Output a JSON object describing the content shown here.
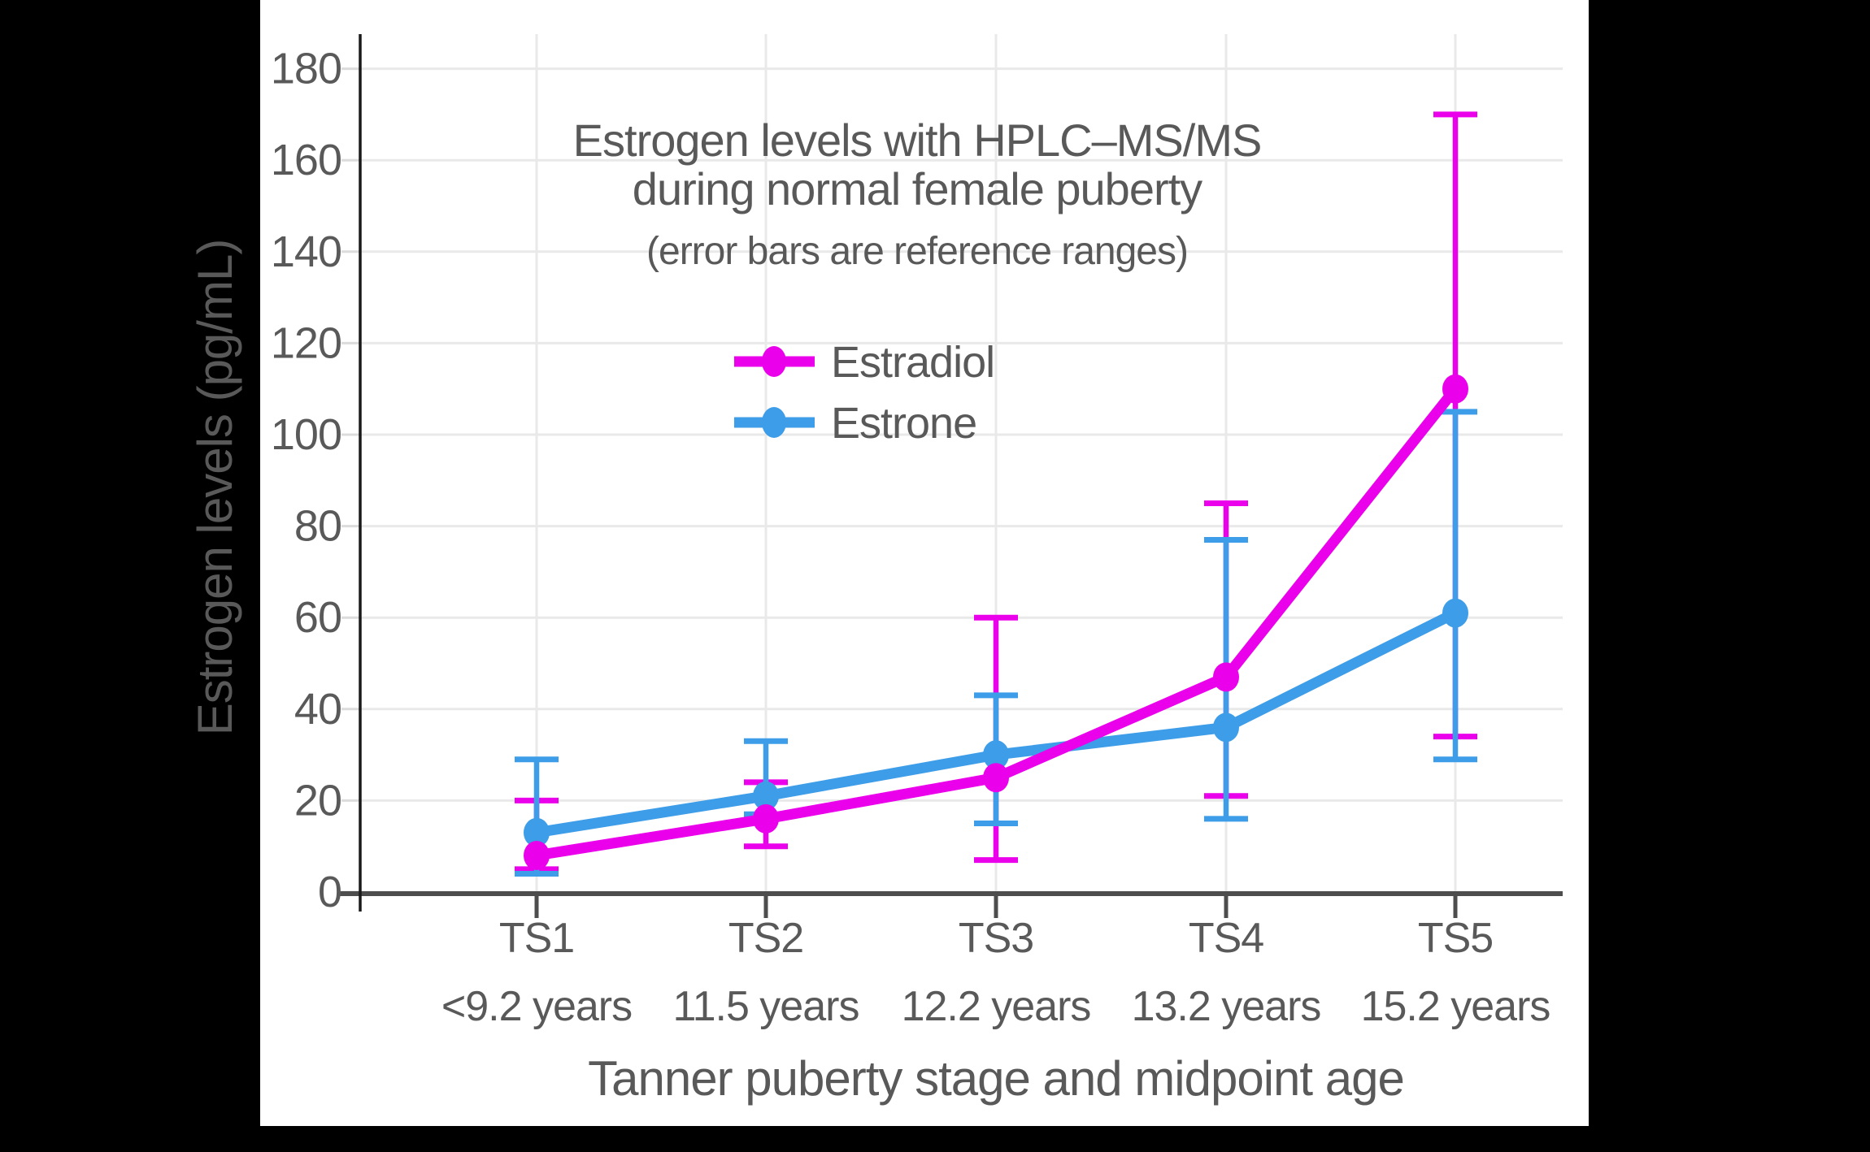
{
  "frame": {
    "background": "#000000",
    "panel_background": "#ffffff"
  },
  "palette": {
    "text": "#595959",
    "grid": "#e9e9e9",
    "x_axis": "#4d4d4d",
    "y_axis": "#1a1a1a",
    "tick_stub": "#dcdcdc"
  },
  "chart_data": {
    "type": "line",
    "title_line1": "Estrogen levels with HPLC–MS/MS",
    "title_line2": "during normal female puberty",
    "subtitle": "(error bars are reference ranges)",
    "ylabel": "Estrogen levels (pg/mL)",
    "xlabel": "Tanner puberty stage and midpoint age",
    "categories": [
      "TS1",
      "TS2",
      "TS3",
      "TS4",
      "TS5"
    ],
    "category_ages": [
      "<9.2 years",
      "11.5 years",
      "12.2 years",
      "13.2 years",
      "15.2 years"
    ],
    "yticks": [
      0,
      20,
      40,
      60,
      80,
      100,
      120,
      140,
      160,
      180
    ],
    "ylim": [
      0,
      187
    ],
    "grid": true,
    "legend_position": "inside-upper-center",
    "error_bar_meaning": "reference ranges",
    "series": [
      {
        "name": "Estradiol",
        "color": "#eb00eb",
        "values": [
          8,
          16,
          25,
          47,
          110
        ],
        "error_low": [
          5,
          10,
          7,
          21,
          34
        ],
        "error_high": [
          20,
          24,
          60,
          85,
          170
        ]
      },
      {
        "name": "Estrone",
        "color": "#3e9de8",
        "values": [
          13,
          21,
          30,
          36,
          61
        ],
        "error_low": [
          4,
          17,
          15,
          16,
          29
        ],
        "error_high": [
          29,
          33,
          43,
          77,
          105
        ]
      }
    ]
  }
}
